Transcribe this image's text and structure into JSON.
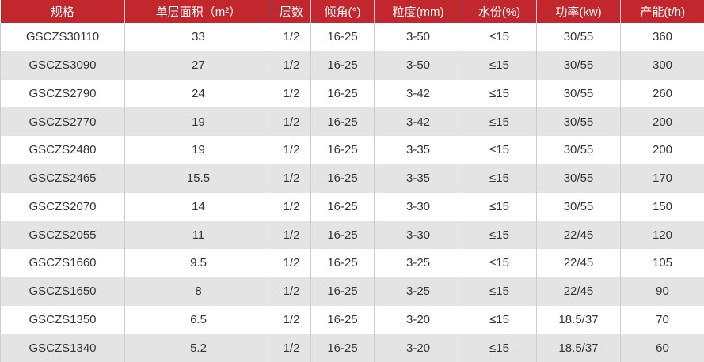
{
  "colors": {
    "header_bg": "#c1272d",
    "header_text": "#ffffff",
    "row_alt_bg": "#e4e4e4",
    "row_bg": "#ffffff",
    "border": "#cccccc",
    "body_text": "#333333"
  },
  "table": {
    "columns": [
      "规格",
      "单层面积（m²）",
      "层数",
      "倾角(°)",
      "粒度(mm)",
      "水份(%)",
      "功率(kw)",
      "产能(t/h)"
    ],
    "rows": [
      [
        "GSCZS30110",
        "33",
        "1/2",
        "16-25",
        "3-50",
        "≤15",
        "30/55",
        "360"
      ],
      [
        "GSCZS3090",
        "27",
        "1/2",
        "16-25",
        "3-50",
        "≤15",
        "30/55",
        "300"
      ],
      [
        "GSCZS2790",
        "24",
        "1/2",
        "16-25",
        "3-42",
        "≤15",
        "30/55",
        "260"
      ],
      [
        "GSCZS2770",
        "19",
        "1/2",
        "16-25",
        "3-42",
        "≤15",
        "30/55",
        "200"
      ],
      [
        "GSCZS2480",
        "19",
        "1/2",
        "16-25",
        "3-35",
        "≤15",
        "30/55",
        "200"
      ],
      [
        "GSCZS2465",
        "15.5",
        "1/2",
        "16-25",
        "3-35",
        "≤15",
        "30/55",
        "170"
      ],
      [
        "GSCZS2070",
        "14",
        "1/2",
        "16-25",
        "3-30",
        "≤15",
        "30/55",
        "150"
      ],
      [
        "GSCZS2055",
        "11",
        "1/2",
        "16-25",
        "3-30",
        "≤15",
        "22/45",
        "120"
      ],
      [
        "GSCZS1660",
        "9.5",
        "1/2",
        "16-25",
        "3-25",
        "≤15",
        "22/45",
        "105"
      ],
      [
        "GSCZS1650",
        "8",
        "1/2",
        "16-25",
        "3-25",
        "≤15",
        "22/45",
        "90"
      ],
      [
        "GSCZS1350",
        "6.5",
        "1/2",
        "16-25",
        "3-20",
        "≤15",
        "18.5/37",
        "70"
      ],
      [
        "GSCZS1340",
        "5.2",
        "1/2",
        "16-25",
        "3-20",
        "≤15",
        "18.5/37",
        "60"
      ]
    ]
  }
}
